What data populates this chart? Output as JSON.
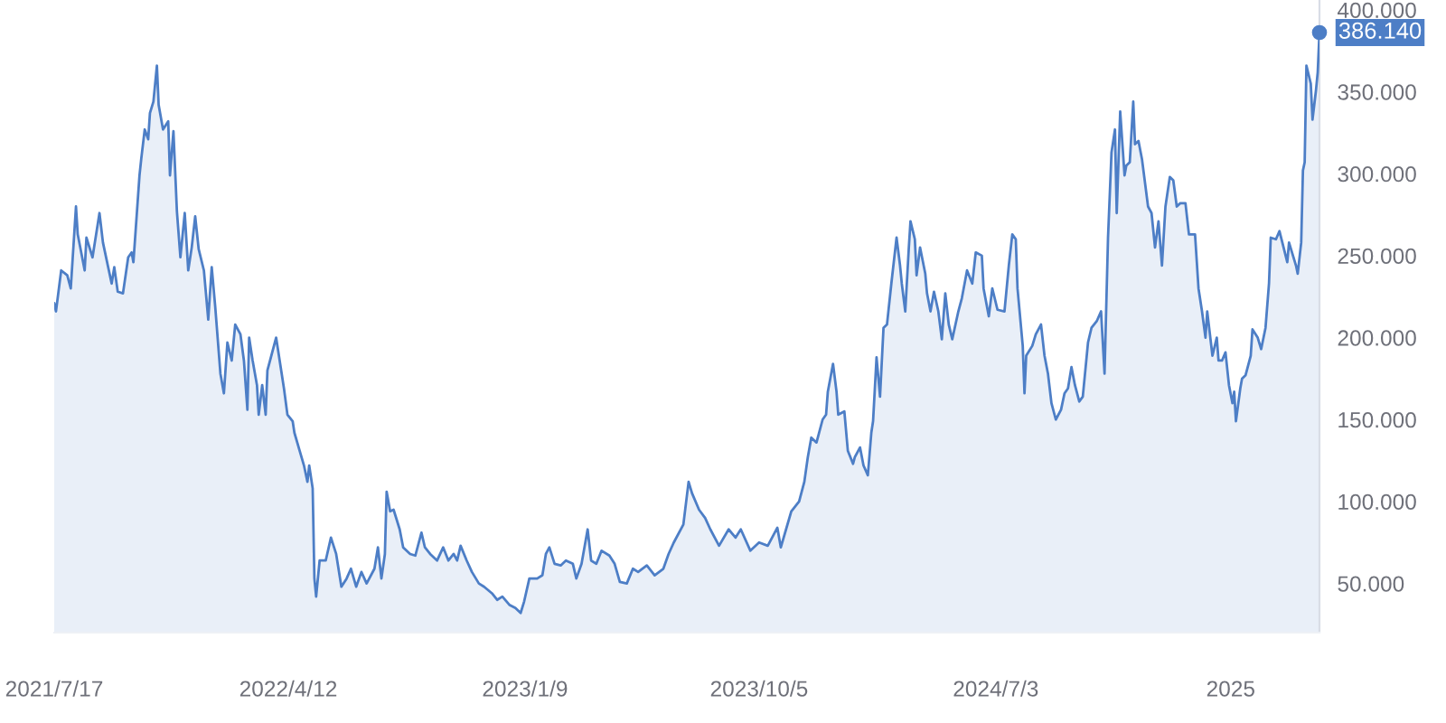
{
  "chart_data": {
    "type": "area",
    "series": [
      {
        "color": "#4d7ec6",
        "x": [
          "2021-07-17",
          "2021-07-19",
          "2021-07-25",
          "2021-08-01",
          "2021-08-05",
          "2021-08-11",
          "2021-08-13",
          "2021-08-21",
          "2021-08-23",
          "2021-08-30",
          "2021-09-07",
          "2021-09-11",
          "2021-09-17",
          "2021-09-21",
          "2021-09-24",
          "2021-09-28",
          "2021-10-04",
          "2021-10-10",
          "2021-10-14",
          "2021-10-16",
          "2021-10-23",
          "2021-10-25",
          "2021-10-29",
          "2021-11-02",
          "2021-11-04",
          "2021-11-08",
          "2021-11-12",
          "2021-11-14",
          "2021-11-19",
          "2021-11-25",
          "2021-11-27",
          "2021-12-01",
          "2021-12-05",
          "2021-12-09",
          "2021-12-14",
          "2021-12-18",
          "2021-12-22",
          "2021-12-26",
          "2021-12-30",
          "2022-01-05",
          "2022-01-10",
          "2022-01-14",
          "2022-01-18",
          "2022-01-24",
          "2022-01-28",
          "2022-02-01",
          "2022-02-06",
          "2022-02-10",
          "2022-02-16",
          "2022-02-20",
          "2022-02-24",
          "2022-02-26",
          "2022-03-02",
          "2022-03-07",
          "2022-03-09",
          "2022-03-13",
          "2022-03-17",
          "2022-03-19",
          "2022-03-29",
          "2022-04-07",
          "2022-04-11",
          "2022-04-17",
          "2022-04-19",
          "2022-04-25",
          "2022-04-30",
          "2022-05-04",
          "2022-05-06",
          "2022-05-10",
          "2022-05-12",
          "2022-05-14",
          "2022-05-18",
          "2022-05-25",
          "2022-05-31",
          "2022-06-06",
          "2022-06-12",
          "2022-06-18",
          "2022-06-23",
          "2022-06-29",
          "2022-07-05",
          "2022-07-11",
          "2022-07-20",
          "2022-07-24",
          "2022-07-28",
          "2022-08-01",
          "2022-08-03",
          "2022-08-07",
          "2022-08-11",
          "2022-08-18",
          "2022-08-22",
          "2022-08-30",
          "2022-09-05",
          "2022-09-12",
          "2022-09-16",
          "2022-09-22",
          "2022-09-30",
          "2022-10-07",
          "2022-10-13",
          "2022-10-19",
          "2022-10-23",
          "2022-10-27",
          "2022-11-03",
          "2022-11-09",
          "2022-11-17",
          "2022-11-23",
          "2022-12-02",
          "2022-12-08",
          "2022-12-14",
          "2022-12-22",
          "2022-12-29",
          "2023-01-04",
          "2023-01-08",
          "2023-01-14",
          "2023-01-23",
          "2023-01-29",
          "2023-02-02",
          "2023-02-06",
          "2023-02-12",
          "2023-02-19",
          "2023-02-25",
          "2023-03-05",
          "2023-03-09",
          "2023-03-15",
          "2023-03-22",
          "2023-03-26",
          "2023-04-01",
          "2023-04-07",
          "2023-04-16",
          "2023-04-22",
          "2023-04-28",
          "2023-05-06",
          "2023-05-13",
          "2023-05-19",
          "2023-05-29",
          "2023-06-07",
          "2023-06-17",
          "2023-06-23",
          "2023-06-29",
          "2023-07-10",
          "2023-07-16",
          "2023-07-20",
          "2023-07-28",
          "2023-08-04",
          "2023-08-10",
          "2023-08-20",
          "2023-08-31",
          "2023-09-08",
          "2023-09-14",
          "2023-09-25",
          "2023-10-05",
          "2023-10-15",
          "2023-10-26",
          "2023-10-30",
          "2023-11-05",
          "2023-11-11",
          "2023-11-20",
          "2023-11-26",
          "2023-11-30",
          "2023-12-04",
          "2023-12-10",
          "2023-12-17",
          "2023-12-21",
          "2023-12-23",
          "2023-12-29",
          "2024-01-02",
          "2024-01-04",
          "2024-01-11",
          "2024-01-15",
          "2024-01-21",
          "2024-01-23",
          "2024-01-29",
          "2024-02-02",
          "2024-02-07",
          "2024-02-11",
          "2024-02-13",
          "2024-02-17",
          "2024-02-21",
          "2024-02-25",
          "2024-02-29",
          "2024-03-05",
          "2024-03-11",
          "2024-03-15",
          "2024-03-17",
          "2024-03-21",
          "2024-03-25",
          "2024-03-27",
          "2024-04-01",
          "2024-04-03",
          "2024-04-07",
          "2024-04-13",
          "2024-04-15",
          "2024-04-19",
          "2024-04-23",
          "2024-04-28",
          "2024-05-02",
          "2024-05-06",
          "2024-05-10",
          "2024-05-14",
          "2024-05-21",
          "2024-05-25",
          "2024-05-31",
          "2024-06-06",
          "2024-06-10",
          "2024-06-17",
          "2024-06-19",
          "2024-06-25",
          "2024-06-29",
          "2024-07-05",
          "2024-07-13",
          "2024-07-18",
          "2024-07-22",
          "2024-07-26",
          "2024-07-28",
          "2024-08-03",
          "2024-08-05",
          "2024-08-07",
          "2024-08-14",
          "2024-08-18",
          "2024-08-24",
          "2024-08-28",
          "2024-09-01",
          "2024-09-05",
          "2024-09-10",
          "2024-09-16",
          "2024-09-20",
          "2024-09-24",
          "2024-09-28",
          "2024-10-02",
          "2024-10-07",
          "2024-10-11",
          "2024-10-17",
          "2024-10-21",
          "2024-10-27",
          "2024-11-01",
          "2024-11-05",
          "2024-11-09",
          "2024-11-13",
          "2024-11-17",
          "2024-11-19",
          "2024-11-23",
          "2024-11-28",
          "2024-11-30",
          "2024-12-04",
          "2024-12-08",
          "2024-12-10",
          "2024-12-14",
          "2024-12-18",
          "2024-12-25",
          "2024-12-29",
          "2025-01-02",
          "2025-01-06",
          "2025-01-10",
          "2025-01-14",
          "2025-01-19",
          "2025-01-23",
          "2025-01-27",
          "2025-01-31",
          "2025-02-06",
          "2025-02-10",
          "2025-02-17",
          "2025-02-21",
          "2025-02-25",
          "2025-03-01",
          "2025-03-03",
          "2025-03-09",
          "2025-03-14",
          "2025-03-16",
          "2025-03-20",
          "2025-03-24",
          "2025-03-28",
          "2025-04-01",
          "2025-04-03",
          "2025-04-05",
          "2025-04-10",
          "2025-04-12",
          "2025-04-16",
          "2025-04-22",
          "2025-04-24",
          "2025-04-30",
          "2025-05-04",
          "2025-05-09",
          "2025-05-13",
          "2025-05-15",
          "2025-05-21",
          "2025-05-25",
          "2025-06-03",
          "2025-06-05",
          "2025-06-13",
          "2025-06-15",
          "2025-06-19",
          "2025-06-21",
          "2025-06-23",
          "2025-06-25",
          "2025-06-30",
          "2025-07-02",
          "2025-07-06",
          "2025-07-08",
          "2025-07-10"
        ],
        "values": [
          221,
          216,
          241,
          238,
          230,
          280,
          263,
          241,
          261,
          249,
          276,
          258,
          243,
          233,
          243,
          228,
          227,
          249,
          252,
          246,
          299,
          309,
          327,
          321,
          337,
          344,
          366,
          342,
          327,
          332,
          299,
          326,
          277,
          249,
          276,
          241,
          255,
          274,
          254,
          241,
          211,
          243,
          219,
          178,
          166,
          197,
          186,
          208,
          202,
          186,
          156,
          200,
          186,
          171,
          153,
          171,
          153,
          180,
          200,
          169,
          153,
          149,
          142,
          131,
          122,
          112,
          122,
          108,
          53,
          42,
          64,
          64,
          78,
          68,
          48,
          53,
          59,
          48,
          57,
          50,
          59,
          72,
          53,
          68,
          106,
          94,
          95,
          83,
          72,
          68,
          67,
          81,
          72,
          68,
          64,
          72,
          64,
          68,
          64,
          73,
          64,
          57,
          50,
          48,
          44,
          40,
          42,
          37,
          35,
          32,
          39,
          53,
          53,
          55,
          68,
          72,
          62,
          61,
          64,
          62,
          53,
          62,
          83,
          64,
          62,
          70,
          67,
          62,
          51,
          50,
          59,
          57,
          61,
          55,
          59,
          68,
          75,
          86,
          112,
          105,
          95,
          90,
          83,
          73,
          83,
          78,
          83,
          70,
          75,
          73,
          84,
          72,
          83,
          94,
          100,
          112,
          127,
          139,
          136,
          150,
          153,
          167,
          184,
          167,
          153,
          155,
          131,
          123,
          127,
          133,
          122,
          116,
          142,
          149,
          188,
          164,
          206,
          208,
          233,
          261,
          244,
          233,
          216,
          254,
          271,
          260,
          238,
          255,
          239,
          227,
          216,
          228,
          216,
          199,
          227,
          208,
          199,
          216,
          224,
          241,
          233,
          252,
          250,
          230,
          213,
          230,
          217,
          216,
          244,
          263,
          260,
          230,
          195,
          166,
          189,
          195,
          202,
          208,
          189,
          178,
          160,
          150,
          156,
          166,
          169,
          182,
          171,
          161,
          164,
          197,
          206,
          210,
          216,
          178,
          261,
          313,
          327,
          276,
          338,
          299,
          305,
          307,
          344,
          318,
          320,
          309,
          280,
          276,
          255,
          271,
          244,
          280,
          298,
          296,
          280,
          282,
          282,
          263,
          263,
          230,
          216,
          200,
          216,
          189,
          200,
          186,
          186,
          191,
          171,
          160,
          167,
          149,
          169,
          175,
          177,
          189,
          205,
          200,
          193,
          206,
          233,
          261,
          260,
          265,
          246,
          258,
          244,
          239,
          258,
          302,
          307,
          366,
          355,
          333,
          351,
          362,
          386.14
        ]
      }
    ],
    "xlim": [
      "2021-07-17",
      "2025-07-10"
    ],
    "xticks": [
      {
        "value": "2021-07-17",
        "label": "2021/7/17"
      },
      {
        "value": "2022-04-12",
        "label": "2022/4/12"
      },
      {
        "value": "2023-01-09",
        "label": "2023/1/9"
      },
      {
        "value": "2023-10-05",
        "label": "2023/10/5"
      },
      {
        "value": "2024-07-03",
        "label": "2024/7/3"
      },
      {
        "value": "2025-03-30",
        "label": "2025"
      }
    ],
    "ylim": [
      20,
      406
    ],
    "yticks": [
      {
        "value": 50,
        "label": "50.000"
      },
      {
        "value": 100,
        "label": "100.000"
      },
      {
        "value": 150,
        "label": "150.000"
      },
      {
        "value": 200,
        "label": "200.000"
      },
      {
        "value": 250,
        "label": "250.000"
      },
      {
        "value": 300,
        "label": "300.000"
      },
      {
        "value": 350,
        "label": "350.000"
      },
      {
        "value": 400,
        "label": "400.000"
      }
    ],
    "annotations": [
      {
        "text": "386.140",
        "x": "2025-07-10",
        "y": 386.14
      }
    ]
  }
}
